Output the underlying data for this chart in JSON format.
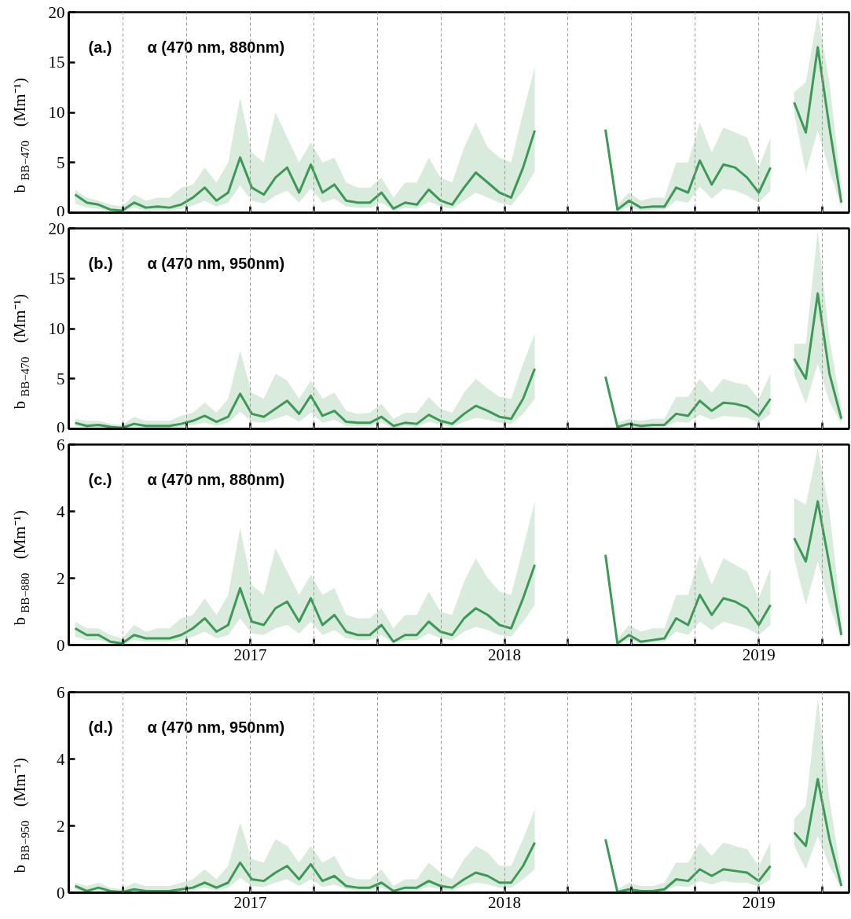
{
  "chart_data": [
    {
      "type": "line",
      "ylabel": "b$_{BB−470}$ (Mm⁻¹)",
      "annotations": [
        "(a.)",
        "α (470 nm, 880nm)"
      ],
      "xlim": [
        2016.286,
        2019.355
      ],
      "ylim": [
        0,
        20
      ],
      "yticks": [
        0,
        5,
        10,
        15,
        20
      ],
      "xticks": [
        {
          "value": 2016.5,
          "label": null
        },
        {
          "value": 2016.75,
          "label": null
        },
        {
          "value": 2017,
          "label": null
        },
        {
          "value": 2017.25,
          "label": null
        },
        {
          "value": 2017.5,
          "label": null
        },
        {
          "value": 2017.75,
          "label": null
        },
        {
          "value": 2018,
          "label": null
        },
        {
          "value": 2018.25,
          "label": null
        },
        {
          "value": 2018.5,
          "label": null
        },
        {
          "value": 2018.75,
          "label": null
        },
        {
          "value": 2019,
          "label": null
        },
        {
          "value": 2019.25,
          "label": null
        }
      ],
      "tick_labels": "y",
      "grid": "x",
      "x": [
        2016.311,
        2016.357,
        2016.403,
        2016.45,
        2016.496,
        2016.543,
        2016.589,
        2016.635,
        2016.682,
        2016.728,
        2016.774,
        2016.821,
        2016.867,
        2016.913,
        2016.96,
        2017.006,
        2017.053,
        2017.099,
        2017.145,
        2017.192,
        2017.238,
        2017.284,
        2017.331,
        2017.377,
        2017.423,
        2017.47,
        2017.516,
        2017.563,
        2017.609,
        2017.655,
        2017.702,
        2017.748,
        2017.794,
        2017.841,
        2017.887,
        2017.934,
        2017.98,
        2018.026,
        2018.073,
        2018.119,
        2018.165,
        2018.212,
        2018.258,
        2018.304,
        2018.351,
        2018.397,
        2018.444,
        2018.49,
        2018.536,
        2018.583,
        2018.629,
        2018.675,
        2018.722,
        2018.768,
        2018.815,
        2018.861,
        2018.907,
        2018.954,
        2019.0,
        2019.046,
        2019.093,
        2019.139,
        2019.185,
        2019.232,
        2019.278,
        2019.325
      ],
      "series": [
        {
          "color": "#3d9a56",
          "values": [
            1.8,
            1.0,
            0.8,
            0.3,
            0.2,
            1.0,
            0.5,
            0.6,
            0.5,
            0.8,
            1.5,
            2.5,
            1.2,
            2.0,
            5.5,
            2.5,
            1.8,
            3.5,
            4.5,
            2.0,
            4.8,
            2.0,
            2.8,
            1.2,
            1.0,
            1.0,
            2.0,
            0.4,
            1.0,
            0.8,
            2.3,
            1.2,
            0.8,
            2.5,
            4.0,
            3.0,
            2.0,
            1.5,
            4.5,
            8.2,
            null,
            null,
            null,
            null,
            null,
            8.3,
            0.3,
            1.2,
            0.5,
            0.6,
            0.6,
            2.5,
            2.0,
            5.2,
            2.8,
            4.8,
            4.5,
            3.5,
            2.0,
            4.5,
            null,
            11.0,
            8.0,
            16.5,
            8.5,
            1.0
          ],
          "upper": [
            2.3,
            1.5,
            1.2,
            0.8,
            0.6,
            1.8,
            1.2,
            1.5,
            1.5,
            2.5,
            2.8,
            4.5,
            3.0,
            5.0,
            11.5,
            6.0,
            5.0,
            10.0,
            7.5,
            5.0,
            7.0,
            5.0,
            5.5,
            3.0,
            2.5,
            2.5,
            3.5,
            1.5,
            3.0,
            3.0,
            5.5,
            3.5,
            3.0,
            6.5,
            9.0,
            6.5,
            5.5,
            5.0,
            10.0,
            14.5,
            null,
            null,
            null,
            null,
            null,
            8.3,
            0.8,
            2.0,
            1.2,
            1.5,
            1.5,
            5.0,
            5.0,
            9.0,
            6.0,
            8.5,
            8.0,
            7.5,
            4.5,
            7.5,
            null,
            12.0,
            13.0,
            19.8,
            13.0,
            2.5
          ],
          "lower": [
            0.9,
            0.5,
            0.4,
            0.1,
            0.1,
            0.5,
            0.2,
            0.3,
            0.2,
            0.4,
            0.7,
            1.2,
            0.6,
            1.0,
            2.7,
            1.2,
            0.9,
            1.7,
            2.2,
            1.0,
            2.4,
            1.0,
            1.4,
            0.6,
            0.5,
            0.5,
            1.0,
            0.2,
            0.5,
            0.4,
            1.1,
            0.6,
            0.4,
            1.2,
            2.0,
            1.5,
            1.0,
            0.7,
            2.2,
            4.1,
            null,
            null,
            null,
            null,
            null,
            8.3,
            0.1,
            0.6,
            0.2,
            0.3,
            0.3,
            1.2,
            1.0,
            2.6,
            1.4,
            2.4,
            2.2,
            1.7,
            1.0,
            2.2,
            null,
            10.0,
            4.0,
            8.2,
            4.2,
            0.5
          ]
        }
      ]
    },
    {
      "type": "line",
      "ylabel": "b$_{BB−470}$ (Mm⁻¹)",
      "annotations": [
        "(b.)",
        "α (470 nm, 950nm)"
      ],
      "xlim": [
        2016.286,
        2019.355
      ],
      "ylim": [
        0,
        20
      ],
      "yticks": [
        0,
        5,
        10,
        15,
        20
      ],
      "xticks": [
        {
          "value": 2016.5,
          "label": null
        },
        {
          "value": 2016.75,
          "label": null
        },
        {
          "value": 2017,
          "label": null
        },
        {
          "value": 2017.25,
          "label": null
        },
        {
          "value": 2017.5,
          "label": null
        },
        {
          "value": 2017.75,
          "label": null
        },
        {
          "value": 2018,
          "label": null
        },
        {
          "value": 2018.25,
          "label": null
        },
        {
          "value": 2018.5,
          "label": null
        },
        {
          "value": 2018.75,
          "label": null
        },
        {
          "value": 2019,
          "label": null
        },
        {
          "value": 2019.25,
          "label": null
        }
      ],
      "tick_labels": "y",
      "grid": "x",
      "x": [
        2016.311,
        2016.357,
        2016.403,
        2016.45,
        2016.496,
        2016.543,
        2016.589,
        2016.635,
        2016.682,
        2016.728,
        2016.774,
        2016.821,
        2016.867,
        2016.913,
        2016.96,
        2017.006,
        2017.053,
        2017.099,
        2017.145,
        2017.192,
        2017.238,
        2017.284,
        2017.331,
        2017.377,
        2017.423,
        2017.47,
        2017.516,
        2017.563,
        2017.609,
        2017.655,
        2017.702,
        2017.748,
        2017.794,
        2017.841,
        2017.887,
        2017.934,
        2017.98,
        2018.026,
        2018.073,
        2018.119,
        2018.165,
        2018.212,
        2018.258,
        2018.304,
        2018.351,
        2018.397,
        2018.444,
        2018.49,
        2018.536,
        2018.583,
        2018.629,
        2018.675,
        2018.722,
        2018.768,
        2018.815,
        2018.861,
        2018.907,
        2018.954,
        2019.0,
        2019.046,
        2019.093,
        2019.139,
        2019.185,
        2019.232,
        2019.278,
        2019.325
      ],
      "series": [
        {
          "color": "#3d9a56",
          "values": [
            0.6,
            0.3,
            0.4,
            0.2,
            0.1,
            0.5,
            0.3,
            0.3,
            0.3,
            0.5,
            0.8,
            1.3,
            0.7,
            1.2,
            3.5,
            1.5,
            1.2,
            2.0,
            2.8,
            1.5,
            3.3,
            1.3,
            1.8,
            0.7,
            0.6,
            0.6,
            1.2,
            0.3,
            0.6,
            0.5,
            1.4,
            0.8,
            0.5,
            1.5,
            2.3,
            1.8,
            1.2,
            1.0,
            3.0,
            6.0,
            null,
            null,
            null,
            null,
            null,
            5.2,
            0.2,
            0.5,
            0.3,
            0.4,
            0.4,
            1.5,
            1.3,
            2.8,
            1.8,
            2.6,
            2.5,
            2.2,
            1.3,
            3.0,
            null,
            7.0,
            5.0,
            13.5,
            5.5,
            1.0
          ],
          "upper": [
            1.0,
            0.8,
            0.8,
            0.5,
            0.4,
            1.2,
            0.8,
            0.8,
            0.8,
            1.3,
            1.6,
            2.6,
            1.6,
            3.0,
            7.8,
            3.6,
            3.0,
            5.5,
            4.8,
            3.0,
            4.8,
            3.0,
            3.6,
            1.8,
            1.5,
            1.6,
            2.5,
            1.0,
            1.6,
            1.6,
            3.2,
            2.0,
            1.6,
            3.6,
            5.0,
            4.0,
            3.2,
            3.0,
            6.5,
            9.5,
            null,
            null,
            null,
            null,
            null,
            5.2,
            0.6,
            1.0,
            0.8,
            1.0,
            1.0,
            3.2,
            3.2,
            5.0,
            3.6,
            5.0,
            4.6,
            4.4,
            3.0,
            5.5,
            null,
            8.5,
            8.5,
            19.8,
            9.0,
            2.0
          ],
          "lower": [
            0.3,
            0.1,
            0.2,
            0.1,
            0.05,
            0.2,
            0.1,
            0.1,
            0.1,
            0.2,
            0.4,
            0.6,
            0.3,
            0.6,
            1.7,
            0.7,
            0.6,
            1.0,
            1.4,
            0.7,
            1.6,
            0.6,
            0.9,
            0.3,
            0.3,
            0.3,
            0.6,
            0.1,
            0.3,
            0.2,
            0.7,
            0.4,
            0.2,
            0.7,
            1.1,
            0.9,
            0.6,
            0.5,
            1.5,
            3.0,
            null,
            null,
            null,
            null,
            null,
            5.2,
            0.1,
            0.2,
            0.1,
            0.2,
            0.2,
            0.7,
            0.6,
            1.4,
            0.9,
            1.3,
            1.2,
            1.1,
            0.6,
            1.5,
            null,
            5.5,
            2.5,
            6.5,
            2.7,
            0.5
          ]
        }
      ]
    },
    {
      "type": "line",
      "ylabel": "b$_{BB−880}$ (Mm⁻¹)",
      "annotations": [
        "(c.)",
        "α (470 nm, 880nm)"
      ],
      "xlim": [
        2016.286,
        2019.355
      ],
      "ylim": [
        0,
        6
      ],
      "yticks": [
        0,
        2,
        4,
        6
      ],
      "xticks": [
        {
          "value": 2016.5,
          "label": null
        },
        {
          "value": 2016.75,
          "label": null
        },
        {
          "value": 2017,
          "label": "2017"
        },
        {
          "value": 2017.25,
          "label": null
        },
        {
          "value": 2017.5,
          "label": null
        },
        {
          "value": 2017.75,
          "label": null
        },
        {
          "value": 2018,
          "label": "2018"
        },
        {
          "value": 2018.25,
          "label": null
        },
        {
          "value": 2018.5,
          "label": null
        },
        {
          "value": 2018.75,
          "label": null
        },
        {
          "value": 2019,
          "label": "2019"
        },
        {
          "value": 2019.25,
          "label": null
        }
      ],
      "grid": "x",
      "x": [
        2016.311,
        2016.357,
        2016.403,
        2016.45,
        2016.496,
        2016.543,
        2016.589,
        2016.635,
        2016.682,
        2016.728,
        2016.774,
        2016.821,
        2016.867,
        2016.913,
        2016.96,
        2017.006,
        2017.053,
        2017.099,
        2017.145,
        2017.192,
        2017.238,
        2017.284,
        2017.331,
        2017.377,
        2017.423,
        2017.47,
        2017.516,
        2017.563,
        2017.609,
        2017.655,
        2017.702,
        2017.748,
        2017.794,
        2017.841,
        2017.887,
        2017.934,
        2017.98,
        2018.026,
        2018.073,
        2018.119,
        2018.165,
        2018.212,
        2018.258,
        2018.304,
        2018.351,
        2018.397,
        2018.444,
        2018.49,
        2018.536,
        2018.583,
        2018.629,
        2018.675,
        2018.722,
        2018.768,
        2018.815,
        2018.861,
        2018.907,
        2018.954,
        2019.0,
        2019.046,
        2019.093,
        2019.139,
        2019.185,
        2019.232,
        2019.278,
        2019.325
      ],
      "series": [
        {
          "color": "#3d9a56",
          "values": [
            0.5,
            0.3,
            0.3,
            0.1,
            0.05,
            0.3,
            0.2,
            0.2,
            0.2,
            0.3,
            0.5,
            0.8,
            0.4,
            0.6,
            1.7,
            0.7,
            0.6,
            1.1,
            1.3,
            0.7,
            1.4,
            0.6,
            0.9,
            0.4,
            0.3,
            0.3,
            0.6,
            0.1,
            0.3,
            0.3,
            0.7,
            0.4,
            0.3,
            0.8,
            1.1,
            0.9,
            0.6,
            0.5,
            1.4,
            2.4,
            null,
            null,
            null,
            null,
            null,
            2.7,
            0.05,
            0.3,
            0.1,
            0.15,
            0.2,
            0.8,
            0.6,
            1.5,
            0.9,
            1.4,
            1.3,
            1.1,
            0.6,
            1.2,
            null,
            3.2,
            2.5,
            4.3,
            2.4,
            0.3
          ],
          "upper": [
            0.7,
            0.5,
            0.5,
            0.3,
            0.2,
            0.6,
            0.4,
            0.5,
            0.5,
            0.8,
            0.9,
            1.4,
            0.9,
            1.5,
            3.5,
            1.8,
            1.5,
            2.9,
            2.2,
            1.5,
            2.1,
            1.5,
            1.7,
            0.9,
            0.8,
            0.8,
            1.1,
            0.5,
            0.9,
            0.9,
            1.6,
            1.0,
            0.9,
            1.9,
            2.6,
            2.0,
            1.6,
            1.5,
            2.9,
            4.3,
            null,
            null,
            null,
            null,
            null,
            2.7,
            0.2,
            0.6,
            0.4,
            0.5,
            0.5,
            1.5,
            1.5,
            2.7,
            1.8,
            2.6,
            2.4,
            2.2,
            1.4,
            2.3,
            null,
            4.4,
            4.2,
            5.9,
            4.0,
            0.8
          ],
          "lower": [
            0.25,
            0.15,
            0.15,
            0.05,
            0.02,
            0.15,
            0.1,
            0.1,
            0.1,
            0.15,
            0.25,
            0.4,
            0.2,
            0.3,
            0.8,
            0.35,
            0.3,
            0.5,
            0.6,
            0.35,
            0.7,
            0.3,
            0.45,
            0.2,
            0.15,
            0.15,
            0.3,
            0.05,
            0.15,
            0.15,
            0.35,
            0.2,
            0.15,
            0.4,
            0.55,
            0.45,
            0.3,
            0.25,
            0.7,
            1.2,
            null,
            null,
            null,
            null,
            null,
            2.7,
            0.02,
            0.15,
            0.05,
            0.07,
            0.1,
            0.4,
            0.3,
            0.7,
            0.45,
            0.7,
            0.6,
            0.5,
            0.3,
            0.6,
            null,
            2.6,
            1.2,
            2.5,
            1.2,
            0.15
          ]
        }
      ]
    },
    {
      "type": "line",
      "ylabel": "b$_{BB−950}$ (Mm⁻¹)",
      "annotations": [
        "(d.)",
        "α (470 nm, 950nm)"
      ],
      "xlim": [
        2016.286,
        2019.355
      ],
      "ylim": [
        0,
        6
      ],
      "yticks": [
        0,
        2,
        4,
        6
      ],
      "xticks": [
        {
          "value": 2016.5,
          "label": null
        },
        {
          "value": 2016.75,
          "label": null
        },
        {
          "value": 2017,
          "label": "2017"
        },
        {
          "value": 2017.25,
          "label": null
        },
        {
          "value": 2017.5,
          "label": null
        },
        {
          "value": 2017.75,
          "label": null
        },
        {
          "value": 2018,
          "label": "2018"
        },
        {
          "value": 2018.25,
          "label": null
        },
        {
          "value": 2018.5,
          "label": null
        },
        {
          "value": 2018.75,
          "label": null
        },
        {
          "value": 2019,
          "label": "2019"
        },
        {
          "value": 2019.25,
          "label": null
        }
      ],
      "grid": "x",
      "x": [
        2016.311,
        2016.357,
        2016.403,
        2016.45,
        2016.496,
        2016.543,
        2016.589,
        2016.635,
        2016.682,
        2016.728,
        2016.774,
        2016.821,
        2016.867,
        2016.913,
        2016.96,
        2017.006,
        2017.053,
        2017.099,
        2017.145,
        2017.192,
        2017.238,
        2017.284,
        2017.331,
        2017.377,
        2017.423,
        2017.47,
        2017.516,
        2017.563,
        2017.609,
        2017.655,
        2017.702,
        2017.748,
        2017.794,
        2017.841,
        2017.887,
        2017.934,
        2017.98,
        2018.026,
        2018.073,
        2018.119,
        2018.165,
        2018.212,
        2018.258,
        2018.304,
        2018.351,
        2018.397,
        2018.444,
        2018.49,
        2018.536,
        2018.583,
        2018.629,
        2018.675,
        2018.722,
        2018.768,
        2018.815,
        2018.861,
        2018.907,
        2018.954,
        2019.0,
        2019.046,
        2019.093,
        2019.139,
        2019.185,
        2019.232,
        2019.278,
        2019.325
      ],
      "series": [
        {
          "color": "#3d9a56",
          "values": [
            0.2,
            0.05,
            0.15,
            0.05,
            0.02,
            0.1,
            0.05,
            0.05,
            0.05,
            0.1,
            0.15,
            0.3,
            0.15,
            0.3,
            0.9,
            0.4,
            0.35,
            0.6,
            0.8,
            0.4,
            0.85,
            0.35,
            0.5,
            0.2,
            0.15,
            0.15,
            0.3,
            0.05,
            0.15,
            0.15,
            0.35,
            0.2,
            0.15,
            0.4,
            0.6,
            0.5,
            0.3,
            0.3,
            0.8,
            1.5,
            null,
            null,
            null,
            null,
            null,
            1.6,
            0.02,
            0.1,
            0.05,
            0.05,
            0.1,
            0.4,
            0.35,
            0.7,
            0.5,
            0.7,
            0.65,
            0.6,
            0.35,
            0.8,
            null,
            1.8,
            1.4,
            3.4,
            1.6,
            0.2
          ],
          "upper": [
            0.3,
            0.2,
            0.3,
            0.15,
            0.1,
            0.3,
            0.2,
            0.2,
            0.2,
            0.3,
            0.4,
            0.7,
            0.4,
            0.8,
            2.1,
            1.0,
            0.9,
            1.6,
            1.4,
            0.9,
            1.4,
            0.9,
            1.1,
            0.5,
            0.4,
            0.4,
            0.7,
            0.2,
            0.4,
            0.4,
            0.9,
            0.6,
            0.4,
            1.0,
            1.4,
            1.2,
            0.8,
            0.8,
            1.6,
            2.5,
            null,
            null,
            null,
            null,
            null,
            1.6,
            0.1,
            0.3,
            0.2,
            0.2,
            0.3,
            0.9,
            0.9,
            1.5,
            1.1,
            1.5,
            1.4,
            1.3,
            0.8,
            1.5,
            null,
            2.2,
            2.6,
            5.8,
            2.8,
            0.5
          ],
          "lower": [
            0.1,
            0.02,
            0.07,
            0.02,
            0.01,
            0.05,
            0.02,
            0.02,
            0.02,
            0.05,
            0.07,
            0.15,
            0.07,
            0.15,
            0.45,
            0.2,
            0.17,
            0.3,
            0.4,
            0.2,
            0.4,
            0.17,
            0.25,
            0.1,
            0.07,
            0.07,
            0.15,
            0.02,
            0.07,
            0.07,
            0.17,
            0.1,
            0.07,
            0.2,
            0.3,
            0.25,
            0.15,
            0.15,
            0.4,
            0.7,
            null,
            null,
            null,
            null,
            null,
            1.6,
            0.01,
            0.05,
            0.02,
            0.02,
            0.05,
            0.2,
            0.17,
            0.35,
            0.25,
            0.35,
            0.3,
            0.3,
            0.17,
            0.4,
            null,
            1.4,
            0.7,
            1.7,
            0.8,
            0.1
          ]
        }
      ]
    }
  ]
}
